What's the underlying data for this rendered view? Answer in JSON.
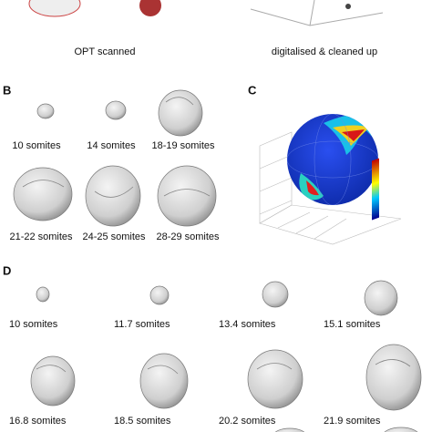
{
  "panel_a": {
    "labels": [
      "OPT scanned",
      "digitalised & cleaned up"
    ]
  },
  "panel_b": {
    "letter": "B",
    "labels": [
      "10 somites",
      "14 somites",
      "18-19 somites",
      "21-22 somites",
      "24-25 somites",
      "28-29 somites"
    ]
  },
  "panel_c": {
    "letter": "C"
  },
  "panel_d": {
    "letter": "D",
    "labels": [
      "10 somites",
      "11.7 somites",
      "13.4 somites",
      "15.1 somites",
      "16.8 somites",
      "18.5 somites",
      "20.2 somites",
      "21.9 somites"
    ]
  }
}
